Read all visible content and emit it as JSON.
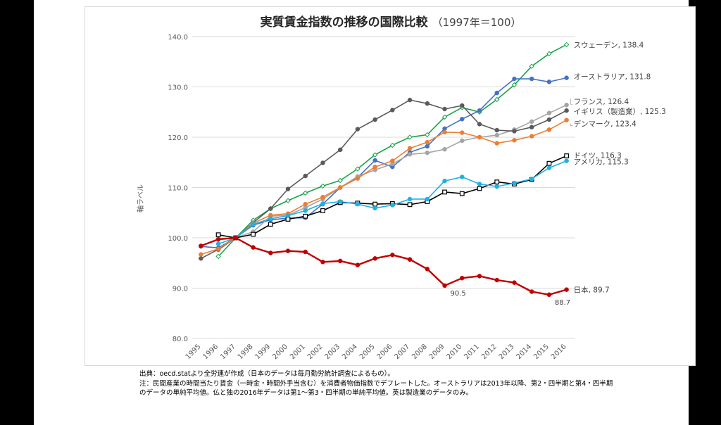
{
  "chart_data": {
    "type": "line",
    "title": "実質賃金指数の推移の国際比較",
    "subtitle": "（1997年＝100）",
    "ylabel": "軸ラベル",
    "xlabel": "",
    "ylim": [
      80,
      140
    ],
    "yticks": [
      "80.0",
      "90.0",
      "100.0",
      "110.0",
      "120.0",
      "130.0",
      "140.0"
    ],
    "grid": true,
    "legend": "none",
    "x": [
      "1995",
      "1996",
      "1997",
      "1998",
      "1999",
      "2000",
      "2001",
      "2002",
      "2003",
      "2004",
      "2005",
      "2006",
      "2007",
      "2008",
      "2009",
      "2010",
      "2011",
      "2012",
      "2013",
      "2014",
      "2015",
      "2016"
    ],
    "series": [
      {
        "name": "スウェーデン",
        "end_label": "スウェーデン, 138.4",
        "color": "#1aa14a",
        "marker": "diamond-open",
        "values": [
          null,
          96.3,
          100,
          103.5,
          105.8,
          107.4,
          108.9,
          110.3,
          111.4,
          113.7,
          116.5,
          118.4,
          120.0,
          120.5,
          124.0,
          125.9,
          125.0,
          127.5,
          130.4,
          134.1,
          136.6,
          138.4
        ]
      },
      {
        "name": "オーストラリア",
        "end_label": "オーストラリア, 131.8",
        "color": "#4472c4",
        "marker": "circle",
        "values": [
          98.3,
          98.0,
          100,
          102.5,
          103.6,
          103.9,
          104.0,
          106.7,
          110.0,
          112.0,
          115.4,
          114.1,
          117.0,
          118.2,
          121.7,
          123.6,
          125.3,
          128.8,
          131.6,
          131.6,
          131.0,
          131.8
        ]
      },
      {
        "name": "フランス",
        "end_label": "フランス, 126.4",
        "color": "#a5a5a5",
        "marker": "circle",
        "values": [
          null,
          97.6,
          100,
          101.2,
          104.3,
          104.5,
          106.0,
          107.7,
          110.0,
          112.2,
          113.5,
          114.7,
          116.6,
          116.9,
          117.6,
          119.3,
          120.0,
          120.4,
          121.5,
          123.1,
          124.8,
          126.4
        ]
      },
      {
        "name": "イギリス（製造業）",
        "end_label": "イギリス（製造業）, 125.3",
        "color": "#5a5a5a",
        "marker": "circle",
        "values": [
          95.9,
          97.7,
          100,
          103.0,
          105.8,
          109.7,
          112.3,
          114.9,
          117.5,
          121.6,
          123.5,
          125.4,
          127.4,
          126.7,
          125.6,
          126.3,
          122.6,
          121.4,
          121.2,
          122.0,
          123.5,
          125.3
        ]
      },
      {
        "name": "デンマーク",
        "end_label": "デンマーク, 123.4",
        "color": "#ed7d31",
        "marker": "circle",
        "values": [
          96.7,
          97.8,
          100,
          102.9,
          104.5,
          104.8,
          106.7,
          108.1,
          110.0,
          111.8,
          114.1,
          115.3,
          117.8,
          119.0,
          121.0,
          120.9,
          120.0,
          118.8,
          119.4,
          120.2,
          121.5,
          123.4
        ]
      },
      {
        "name": "ドイツ",
        "end_label": "ドイツ, 116.3",
        "color": "#000000",
        "marker": "square-open",
        "values": [
          null,
          100.6,
          100,
          100.7,
          102.7,
          103.7,
          104.3,
          105.4,
          107.0,
          106.9,
          106.7,
          106.8,
          106.6,
          107.2,
          109.1,
          108.8,
          109.8,
          111.1,
          110.7,
          111.6,
          114.8,
          116.3
        ]
      },
      {
        "name": "アメリカ",
        "end_label": "アメリカ, 115.3",
        "color": "#1fb0e6",
        "marker": "circle",
        "values": [
          null,
          98.8,
          100,
          102.7,
          103.8,
          104.4,
          105.4,
          106.8,
          107.2,
          106.7,
          105.9,
          106.5,
          107.7,
          107.7,
          111.3,
          112.1,
          110.7,
          110.2,
          110.9,
          111.7,
          113.9,
          115.3
        ]
      },
      {
        "name": "日本",
        "end_label": "日本, 89.7",
        "color": "#c00000",
        "marker": "circle",
        "values": [
          98.4,
          99.7,
          100,
          98.1,
          97.0,
          97.4,
          97.2,
          95.2,
          95.4,
          94.6,
          95.9,
          96.6,
          95.7,
          93.8,
          90.5,
          92.0,
          92.4,
          91.6,
          91.1,
          89.3,
          88.7,
          89.7
        ]
      }
    ],
    "annotations": [
      {
        "text": "90.5",
        "x": "2009",
        "y": 90.5
      },
      {
        "text": "88.7",
        "x": "2015",
        "y": 88.7
      }
    ]
  },
  "footnotes": [
    "出典：oecd.statより全労連が作成（日本のデータは毎月勤労統計調査によるもの）。",
    "注：民間産業の時間当たり賃金（一時金・時間外手当含む）を消費者物価指数でデフレートした。オーストラリアは2013年以降、第2・四半期と第4・四半期",
    "のデータの単純平均値。仏と独の2016年データは第1〜第3・四半期の単純平均値。英は製造業のデータのみ。"
  ]
}
